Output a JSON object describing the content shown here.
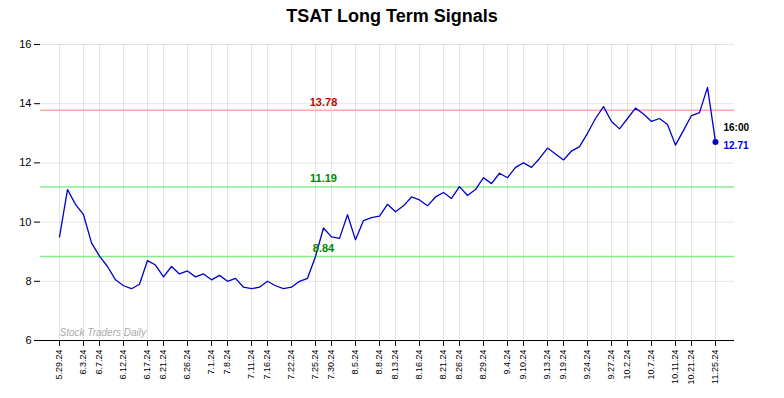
{
  "chart_data": {
    "type": "line",
    "title": "TSAT Long Term Signals",
    "categories": [
      "5.29.24",
      null,
      null,
      "6.3.24",
      null,
      "6.7.24",
      null,
      null,
      "6.12.24",
      null,
      null,
      "6.17.24",
      null,
      "6.21.24",
      null,
      null,
      "6.26.24",
      null,
      null,
      "7.1.24",
      null,
      "7.8.24",
      null,
      null,
      "7.11.24",
      null,
      "7.16.24",
      null,
      null,
      "7.22.24",
      null,
      null,
      "7.25.24",
      null,
      "7.30.24",
      null,
      null,
      "8.5.24",
      null,
      null,
      "8.8.24",
      null,
      "8.13.24",
      null,
      null,
      "8.16.24",
      null,
      null,
      "8.21.24",
      null,
      "8.26.24",
      null,
      null,
      "8.29.24",
      null,
      null,
      "9.4.24",
      null,
      "9.10.24",
      null,
      null,
      "9.13.24",
      null,
      "9.19.24",
      null,
      null,
      "9.24.24",
      null,
      null,
      "9.27.24",
      null,
      "10.2.24",
      null,
      null,
      "10.7.24",
      null,
      null,
      "10.11.24",
      null,
      "10.21.24",
      null,
      null,
      "11.25.24"
    ],
    "values": [
      9.5,
      11.1,
      10.6,
      10.25,
      9.3,
      8.85,
      8.5,
      8.05,
      7.85,
      7.75,
      7.9,
      8.7,
      8.55,
      8.15,
      8.5,
      8.25,
      8.35,
      8.15,
      8.25,
      8.05,
      8.2,
      8.0,
      8.1,
      7.8,
      7.75,
      7.8,
      8.0,
      7.85,
      7.75,
      7.8,
      8.0,
      8.1,
      8.84,
      9.8,
      9.5,
      9.45,
      10.25,
      9.4,
      10.05,
      10.15,
      10.2,
      10.6,
      10.35,
      10.55,
      10.85,
      10.75,
      10.55,
      10.85,
      11.0,
      10.8,
      11.2,
      10.9,
      11.1,
      11.5,
      11.3,
      11.65,
      11.5,
      11.85,
      12.0,
      11.85,
      12.15,
      12.5,
      12.3,
      12.1,
      12.4,
      12.55,
      13.0,
      13.5,
      13.9,
      13.4,
      13.15,
      13.5,
      13.85,
      13.65,
      13.4,
      13.5,
      13.3,
      12.6,
      13.1,
      13.6,
      13.7,
      14.55,
      12.71
    ],
    "color": "#0000cc",
    "reference_lines": [
      {
        "y": 13.78,
        "color": "#ffaaaa",
        "label": "13.78",
        "label_color": "#cc0000"
      },
      {
        "y": 11.19,
        "color": "#88ee88",
        "label": "11.19",
        "label_color": "#008800"
      },
      {
        "y": 8.84,
        "color": "#88ee88",
        "label": "8.84",
        "label_color": "#008800"
      }
    ],
    "last_point": {
      "label": "16:00",
      "value_label": "12.71",
      "value_color": "#0000cc"
    },
    "watermark": {
      "text": "Stock Traders Daily",
      "color": "#aaaaaa"
    },
    "ylim": [
      6,
      16
    ],
    "yticks": [
      6,
      8,
      10,
      12,
      14,
      16
    ],
    "grid": true
  }
}
